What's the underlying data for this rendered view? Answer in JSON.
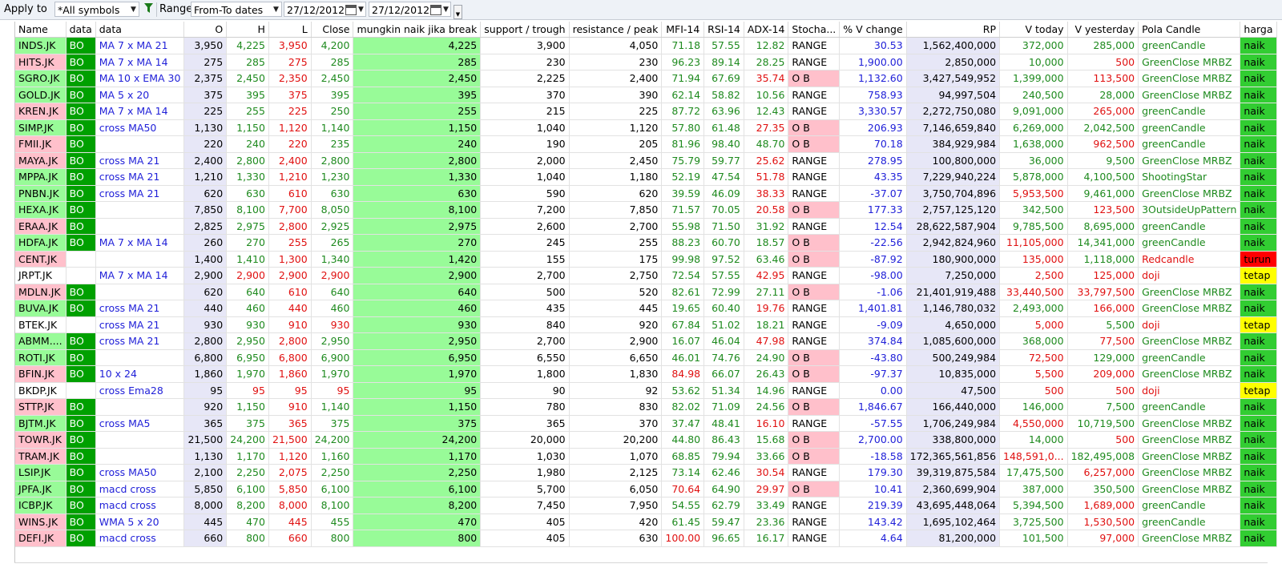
{
  "toolbar": {
    "apply_label": "Apply to",
    "apply_value": "*All symbols",
    "range_label": "Range",
    "range_value": "From-To dates",
    "date_from": "27/12/2012",
    "date_to": "27/12/2012"
  },
  "columns": [
    "Name",
    "data",
    "data",
    "O",
    "H",
    "L",
    "Close",
    "mungkin naik jika break",
    "support / trough",
    "resistance / peak",
    "MFI-14",
    "RSI-14",
    "ADX-14",
    "Stocha...",
    "% V change",
    "RP",
    "V today",
    "V yesterday",
    "Pola Candle",
    "harga"
  ],
  "colors": {
    "name_pink": "#ffc0cb",
    "name_green": "#98fb98",
    "bo_green": "#00a000",
    "naik_green": "#32cd32",
    "turun_red": "#ff0000",
    "tetap_yellow": "#ffff00",
    "ob_pink": "#ffc0cb",
    "lavender": "#e7e7f7",
    "text_blue": "#1f1fd8",
    "text_green": "#1e8a1e",
    "text_red": "#e01010"
  },
  "rows": [
    {
      "name": "INDS.JK",
      "nc": "g",
      "bo": "BO",
      "d2": "MA 7 x MA 21",
      "o": "3,950",
      "h": "4,225",
      "l": "3,950",
      "close": "4,200",
      "mn": "4,225",
      "sup": "3,900",
      "res": "4,050",
      "mfi": "71.18",
      "mfic": "g",
      "rsi": "57.55",
      "adx": "12.82",
      "adxc": "g",
      "sto": "RANGE",
      "vch": "30.53",
      "rp": "1,562,400,000",
      "vt": "372,000",
      "vtc": "g",
      "vy": "285,000",
      "vyc": "g",
      "pola": "greenCandle",
      "pc": "g",
      "harga": "naik"
    },
    {
      "name": "HITS.JK",
      "nc": "p",
      "bo": "BO",
      "d2": "MA 7 x MA 14",
      "o": "275",
      "h": "285",
      "l": "275",
      "close": "285",
      "mn": "285",
      "sup": "230",
      "res": "230",
      "mfi": "96.23",
      "mfic": "g",
      "rsi": "89.14",
      "adx": "28.25",
      "adxc": "g",
      "sto": "RANGE",
      "vch": "1,900.00",
      "rp": "2,850,000",
      "vt": "10,000",
      "vtc": "g",
      "vy": "500",
      "vyc": "r",
      "pola": "GreenClose MRBZ",
      "pc": "g",
      "harga": "naik"
    },
    {
      "name": "SGRO.JK",
      "nc": "g",
      "bo": "BO",
      "d2": "MA 10 x EMA 30",
      "o": "2,375",
      "h": "2,450",
      "l": "2,350",
      "close": "2,450",
      "mn": "2,450",
      "sup": "2,225",
      "res": "2,400",
      "mfi": "71.94",
      "mfic": "g",
      "rsi": "67.69",
      "adx": "35.74",
      "adxc": "r",
      "sto": "O B",
      "vch": "1,132.60",
      "rp": "3,427,549,952",
      "vt": "1,399,000",
      "vtc": "g",
      "vy": "113,500",
      "vyc": "r",
      "pola": "GreenClose MRBZ",
      "pc": "g",
      "harga": "naik"
    },
    {
      "name": "GOLD.JK",
      "nc": "g",
      "bo": "BO",
      "d2": "MA 5 x 20",
      "o": "375",
      "h": "395",
      "l": "375",
      "close": "395",
      "mn": "395",
      "sup": "370",
      "res": "390",
      "mfi": "62.14",
      "mfic": "g",
      "rsi": "58.82",
      "adx": "10.56",
      "adxc": "g",
      "sto": "RANGE",
      "vch": "758.93",
      "rp": "94,997,504",
      "vt": "240,500",
      "vtc": "g",
      "vy": "28,000",
      "vyc": "g",
      "pola": "GreenClose MRBZ",
      "pc": "g",
      "harga": "naik"
    },
    {
      "name": "KREN.JK",
      "nc": "p",
      "bo": "BO",
      "d2": "MA 7 x MA 14",
      "o": "225",
      "h": "255",
      "l": "225",
      "close": "250",
      "mn": "255",
      "sup": "215",
      "res": "225",
      "mfi": "87.72",
      "mfic": "g",
      "rsi": "63.96",
      "adx": "12.43",
      "adxc": "g",
      "sto": "RANGE",
      "vch": "3,330.57",
      "rp": "2,272,750,080",
      "vt": "9,091,000",
      "vtc": "g",
      "vy": "265,000",
      "vyc": "r",
      "pola": "greenCandle",
      "pc": "g",
      "harga": "naik"
    },
    {
      "name": "SIMP.JK",
      "nc": "g",
      "bo": "BO",
      "d2": "cross MA50",
      "o": "1,130",
      "h": "1,150",
      "l": "1,120",
      "close": "1,140",
      "mn": "1,150",
      "sup": "1,040",
      "res": "1,120",
      "mfi": "57.80",
      "mfic": "g",
      "rsi": "61.48",
      "adx": "27.35",
      "adxc": "r",
      "sto": "O B",
      "vch": "206.93",
      "rp": "7,146,659,840",
      "vt": "6,269,000",
      "vtc": "g",
      "vy": "2,042,500",
      "vyc": "g",
      "pola": "greenCandle",
      "pc": "g",
      "harga": "naik"
    },
    {
      "name": "FMII.JK",
      "nc": "p",
      "bo": "BO",
      "d2": "",
      "o": "220",
      "h": "240",
      "l": "220",
      "close": "235",
      "mn": "240",
      "sup": "190",
      "res": "205",
      "mfi": "81.96",
      "mfic": "g",
      "rsi": "98.40",
      "adx": "48.70",
      "adxc": "g",
      "sto": "O B",
      "vch": "70.18",
      "rp": "384,929,984",
      "vt": "1,638,000",
      "vtc": "g",
      "vy": "962,500",
      "vyc": "r",
      "pola": "greenCandle",
      "pc": "g",
      "harga": "naik"
    },
    {
      "name": "MAYA.JK",
      "nc": "p",
      "bo": "BO",
      "d2": "cross MA 21",
      "o": "2,400",
      "h": "2,800",
      "l": "2,400",
      "close": "2,800",
      "mn": "2,800",
      "sup": "2,000",
      "res": "2,450",
      "mfi": "75.79",
      "mfic": "g",
      "rsi": "59.77",
      "adx": "25.62",
      "adxc": "r",
      "sto": "RANGE",
      "vch": "278.95",
      "rp": "100,800,000",
      "vt": "36,000",
      "vtc": "g",
      "vy": "9,500",
      "vyc": "g",
      "pola": "GreenClose MRBZ",
      "pc": "g",
      "harga": "naik"
    },
    {
      "name": "MPPA.JK",
      "nc": "g",
      "bo": "BO",
      "d2": "cross MA 21",
      "o": "1,210",
      "h": "1,330",
      "l": "1,210",
      "close": "1,230",
      "mn": "1,330",
      "sup": "1,040",
      "res": "1,180",
      "mfi": "52.19",
      "mfic": "g",
      "rsi": "47.54",
      "adx": "51.78",
      "adxc": "r",
      "sto": "RANGE",
      "vch": "43.35",
      "rp": "7,229,940,224",
      "vt": "5,878,000",
      "vtc": "g",
      "vy": "4,100,500",
      "vyc": "g",
      "pola": "ShootingStar",
      "pc": "g",
      "harga": "naik"
    },
    {
      "name": "PNBN.JK",
      "nc": "g",
      "bo": "BO",
      "d2": "cross MA 21",
      "o": "620",
      "h": "630",
      "l": "610",
      "close": "630",
      "mn": "630",
      "sup": "590",
      "res": "620",
      "mfi": "39.59",
      "mfic": "g",
      "rsi": "46.09",
      "adx": "38.33",
      "adxc": "r",
      "sto": "RANGE",
      "vch": "-37.07",
      "rp": "3,750,704,896",
      "vt": "5,953,500",
      "vtc": "r",
      "vy": "9,461,000",
      "vyc": "g",
      "pola": "GreenClose MRBZ",
      "pc": "g",
      "harga": "naik"
    },
    {
      "name": "HEXA.JK",
      "nc": "g",
      "bo": "BO",
      "d2": "",
      "o": "7,850",
      "h": "8,100",
      "l": "7,700",
      "close": "8,050",
      "mn": "8,100",
      "sup": "7,200",
      "res": "7,850",
      "mfi": "71.57",
      "mfic": "g",
      "rsi": "70.05",
      "adx": "20.58",
      "adxc": "r",
      "sto": "O B",
      "vch": "177.33",
      "rp": "2,757,125,120",
      "vt": "342,500",
      "vtc": "g",
      "vy": "123,500",
      "vyc": "r",
      "pola": "3OutsideUpPattern",
      "pc": "g",
      "harga": "naik"
    },
    {
      "name": "ERAA.JK",
      "nc": "p",
      "bo": "BO",
      "d2": "",
      "o": "2,825",
      "h": "2,975",
      "l": "2,800",
      "close": "2,925",
      "mn": "2,975",
      "sup": "2,600",
      "res": "2,700",
      "mfi": "55.98",
      "mfic": "g",
      "rsi": "71.50",
      "adx": "31.92",
      "adxc": "g",
      "sto": "RANGE",
      "vch": "12.54",
      "rp": "28,622,587,904",
      "vt": "9,785,500",
      "vtc": "g",
      "vy": "8,695,000",
      "vyc": "g",
      "pola": "greenCandle",
      "pc": "g",
      "harga": "naik"
    },
    {
      "name": "HDFA.JK",
      "nc": "g",
      "bo": "BO",
      "d2": "MA 7 x MA 14",
      "o": "260",
      "h": "270",
      "l": "255",
      "close": "265",
      "mn": "270",
      "sup": "245",
      "res": "255",
      "mfi": "88.23",
      "mfic": "g",
      "rsi": "60.70",
      "adx": "18.57",
      "adxc": "g",
      "sto": "O B",
      "vch": "-22.56",
      "rp": "2,942,824,960",
      "vt": "11,105,000",
      "vtc": "r",
      "vy": "14,341,000",
      "vyc": "g",
      "pola": "greenCandle",
      "pc": "g",
      "harga": "naik"
    },
    {
      "name": "CENT.JK",
      "nc": "p",
      "bo": "",
      "d2": "",
      "o": "1,400",
      "h": "1,410",
      "l": "1,300",
      "close": "1,340",
      "mn": "1,420",
      "sup": "155",
      "res": "175",
      "mfi": "99.98",
      "mfic": "g",
      "rsi": "97.52",
      "adx": "63.46",
      "adxc": "g",
      "sto": "O B",
      "vch": "-87.92",
      "rp": "180,900,000",
      "vt": "135,000",
      "vtc": "r",
      "vy": "1,118,000",
      "vyc": "g",
      "pola": "Redcandle",
      "pc": "r",
      "harga": "turun"
    },
    {
      "name": "JRPT.JK",
      "nc": "w",
      "bo": "",
      "d2": "MA 7 x MA 14",
      "o": "2,900",
      "h": "2,900",
      "l": "2,900",
      "close": "2,900",
      "mn": "2,900",
      "sup": "2,700",
      "res": "2,750",
      "mfi": "72.54",
      "mfic": "g",
      "rsi": "57.55",
      "adx": "42.95",
      "adxc": "r",
      "sto": "RANGE",
      "vch": "-98.00",
      "rp": "7,250,000",
      "vt": "2,500",
      "vtc": "r",
      "vy": "125,000",
      "vyc": "r",
      "pola": "doji",
      "pc": "r",
      "harga": "tetap"
    },
    {
      "name": "MDLN.JK",
      "nc": "p",
      "bo": "BO",
      "d2": "",
      "o": "620",
      "h": "640",
      "l": "610",
      "close": "640",
      "mn": "640",
      "sup": "500",
      "res": "520",
      "mfi": "82.61",
      "mfic": "g",
      "rsi": "72.99",
      "adx": "27.11",
      "adxc": "g",
      "sto": "O B",
      "vch": "-1.06",
      "rp": "21,401,919,488",
      "vt": "33,440,500",
      "vtc": "r",
      "vy": "33,797,500",
      "vyc": "r",
      "pola": "GreenClose MRBZ",
      "pc": "g",
      "harga": "naik"
    },
    {
      "name": "BUVA.JK",
      "nc": "g",
      "bo": "BO",
      "d2": "cross MA 21",
      "o": "440",
      "h": "460",
      "l": "440",
      "close": "460",
      "mn": "460",
      "sup": "435",
      "res": "445",
      "mfi": "19.65",
      "mfic": "g",
      "rsi": "60.40",
      "adx": "19.76",
      "adxc": "r",
      "sto": "RANGE",
      "vch": "1,401.81",
      "rp": "1,146,780,032",
      "vt": "2,493,000",
      "vtc": "g",
      "vy": "166,000",
      "vyc": "r",
      "pola": "GreenClose MRBZ",
      "pc": "g",
      "harga": "naik"
    },
    {
      "name": "BTEK.JK",
      "nc": "w",
      "bo": "",
      "d2": "cross MA 21",
      "o": "930",
      "h": "930",
      "l": "910",
      "close": "930",
      "mn": "930",
      "sup": "840",
      "res": "920",
      "mfi": "67.84",
      "mfic": "g",
      "rsi": "51.02",
      "adx": "18.21",
      "adxc": "g",
      "sto": "RANGE",
      "vch": "-9.09",
      "rp": "4,650,000",
      "vt": "5,000",
      "vtc": "r",
      "vy": "5,500",
      "vyc": "g",
      "pola": "doji",
      "pc": "r",
      "harga": "tetap"
    },
    {
      "name": "ABMM....",
      "nc": "g",
      "bo": "BO",
      "d2": "cross MA 21",
      "o": "2,800",
      "h": "2,950",
      "l": "2,800",
      "close": "2,950",
      "mn": "2,950",
      "sup": "2,700",
      "res": "2,900",
      "mfi": "16.07",
      "mfic": "g",
      "rsi": "46.04",
      "adx": "47.98",
      "adxc": "r",
      "sto": "RANGE",
      "vch": "374.84",
      "rp": "1,085,600,000",
      "vt": "368,000",
      "vtc": "g",
      "vy": "77,500",
      "vyc": "r",
      "pola": "GreenClose MRBZ",
      "pc": "g",
      "harga": "naik"
    },
    {
      "name": "ROTI.JK",
      "nc": "g",
      "bo": "BO",
      "d2": "",
      "o": "6,800",
      "h": "6,950",
      "l": "6,800",
      "close": "6,900",
      "mn": "6,950",
      "sup": "6,550",
      "res": "6,650",
      "mfi": "46.01",
      "mfic": "g",
      "rsi": "74.76",
      "adx": "24.90",
      "adxc": "g",
      "sto": "O B",
      "vch": "-43.80",
      "rp": "500,249,984",
      "vt": "72,500",
      "vtc": "r",
      "vy": "129,000",
      "vyc": "g",
      "pola": "greenCandle",
      "pc": "g",
      "harga": "naik"
    },
    {
      "name": "BFIN.JK",
      "nc": "p",
      "bo": "BO",
      "d2": "10 x 24",
      "o": "1,860",
      "h": "1,970",
      "l": "1,860",
      "close": "1,970",
      "mn": "1,970",
      "sup": "1,800",
      "res": "1,830",
      "mfi": "84.98",
      "mfic": "r",
      "rsi": "66.07",
      "adx": "26.43",
      "adxc": "g",
      "sto": "O B",
      "vch": "-97.37",
      "rp": "10,835,000",
      "vt": "5,500",
      "vtc": "r",
      "vy": "209,000",
      "vyc": "r",
      "pola": "GreenClose MRBZ",
      "pc": "g",
      "harga": "naik"
    },
    {
      "name": "BKDP.JK",
      "nc": "w",
      "bo": "",
      "d2": "cross Ema28",
      "o": "95",
      "h": "95",
      "l": "95",
      "close": "95",
      "mn": "95",
      "sup": "90",
      "res": "92",
      "mfi": "53.62",
      "mfic": "g",
      "rsi": "51.34",
      "adx": "14.96",
      "adxc": "g",
      "sto": "RANGE",
      "vch": "0.00",
      "rp": "47,500",
      "vt": "500",
      "vtc": "r",
      "vy": "500",
      "vyc": "r",
      "pola": "doji",
      "pc": "r",
      "harga": "tetap"
    },
    {
      "name": "STTP.JK",
      "nc": "p",
      "bo": "BO",
      "d2": "",
      "o": "920",
      "h": "1,150",
      "l": "910",
      "close": "1,140",
      "mn": "1,150",
      "sup": "780",
      "res": "830",
      "mfi": "82.02",
      "mfic": "g",
      "rsi": "71.09",
      "adx": "24.56",
      "adxc": "g",
      "sto": "O B",
      "vch": "1,846.67",
      "rp": "166,440,000",
      "vt": "146,000",
      "vtc": "g",
      "vy": "7,500",
      "vyc": "g",
      "pola": "greenCandle",
      "pc": "g",
      "harga": "naik"
    },
    {
      "name": "BJTM.JK",
      "nc": "g",
      "bo": "BO",
      "d2": "cross MA5",
      "o": "365",
      "h": "375",
      "l": "365",
      "close": "375",
      "mn": "375",
      "sup": "365",
      "res": "370",
      "mfi": "37.47",
      "mfic": "g",
      "rsi": "48.41",
      "adx": "16.10",
      "adxc": "r",
      "sto": "RANGE",
      "vch": "-57.55",
      "rp": "1,706,249,984",
      "vt": "4,550,000",
      "vtc": "r",
      "vy": "10,719,500",
      "vyc": "g",
      "pola": "GreenClose MRBZ",
      "pc": "g",
      "harga": "naik"
    },
    {
      "name": "TOWR.JK",
      "nc": "p",
      "bo": "BO",
      "d2": "",
      "o": "21,500",
      "h": "24,200",
      "l": "21,500",
      "close": "24,200",
      "mn": "24,200",
      "sup": "20,000",
      "res": "20,200",
      "mfi": "44.80",
      "mfic": "g",
      "rsi": "86.43",
      "adx": "15.68",
      "adxc": "g",
      "sto": "O B",
      "vch": "2,700.00",
      "rp": "338,800,000",
      "vt": "14,000",
      "vtc": "g",
      "vy": "500",
      "vyc": "r",
      "pola": "GreenClose MRBZ",
      "pc": "g",
      "harga": "naik"
    },
    {
      "name": "TRAM.JK",
      "nc": "p",
      "bo": "BO",
      "d2": "",
      "o": "1,130",
      "h": "1,170",
      "l": "1,120",
      "close": "1,160",
      "mn": "1,170",
      "sup": "1,030",
      "res": "1,070",
      "mfi": "68.85",
      "mfic": "g",
      "rsi": "79.94",
      "adx": "33.66",
      "adxc": "g",
      "sto": "O B",
      "vch": "-18.58",
      "rp": "172,365,561,856",
      "vt": "148,591,0...",
      "vtc": "r",
      "vy": "182,495,008",
      "vyc": "g",
      "pola": "GreenClose MRBZ",
      "pc": "g",
      "harga": "naik"
    },
    {
      "name": "LSIP.JK",
      "nc": "g",
      "bo": "BO",
      "d2": "cross MA50",
      "o": "2,100",
      "h": "2,250",
      "l": "2,075",
      "close": "2,250",
      "mn": "2,250",
      "sup": "1,980",
      "res": "2,125",
      "mfi": "73.14",
      "mfic": "g",
      "rsi": "62.46",
      "adx": "30.54",
      "adxc": "r",
      "sto": "RANGE",
      "vch": "179.30",
      "rp": "39,319,875,584",
      "vt": "17,475,500",
      "vtc": "g",
      "vy": "6,257,000",
      "vyc": "r",
      "pola": "GreenClose MRBZ",
      "pc": "g",
      "harga": "naik"
    },
    {
      "name": "JPFA.JK",
      "nc": "g",
      "bo": "BO",
      "d2": "macd cross",
      "o": "5,850",
      "h": "6,100",
      "l": "5,850",
      "close": "6,100",
      "mn": "6,100",
      "sup": "5,700",
      "res": "6,050",
      "mfi": "70.64",
      "mfic": "r",
      "rsi": "64.90",
      "adx": "29.97",
      "adxc": "r",
      "sto": "O B",
      "vch": "10.41",
      "rp": "2,360,699,904",
      "vt": "387,000",
      "vtc": "g",
      "vy": "350,500",
      "vyc": "g",
      "pola": "GreenClose MRBZ",
      "pc": "g",
      "harga": "naik"
    },
    {
      "name": "ICBP.JK",
      "nc": "g",
      "bo": "BO",
      "d2": "macd cross",
      "o": "8,000",
      "h": "8,200",
      "l": "8,000",
      "close": "8,100",
      "mn": "8,200",
      "sup": "7,450",
      "res": "7,950",
      "mfi": "54.55",
      "mfic": "g",
      "rsi": "62.79",
      "adx": "33.49",
      "adxc": "g",
      "sto": "RANGE",
      "vch": "219.39",
      "rp": "43,695,448,064",
      "vt": "5,394,500",
      "vtc": "g",
      "vy": "1,689,000",
      "vyc": "r",
      "pola": "greenCandle",
      "pc": "g",
      "harga": "naik"
    },
    {
      "name": "WINS.JK",
      "nc": "p",
      "bo": "BO",
      "d2": "WMA 5 x 20",
      "o": "445",
      "h": "470",
      "l": "445",
      "close": "455",
      "mn": "470",
      "sup": "405",
      "res": "420",
      "mfi": "61.45",
      "mfic": "g",
      "rsi": "59.47",
      "adx": "23.36",
      "adxc": "g",
      "sto": "RANGE",
      "vch": "143.42",
      "rp": "1,695,102,464",
      "vt": "3,725,500",
      "vtc": "g",
      "vy": "1,530,500",
      "vyc": "r",
      "pola": "greenCandle",
      "pc": "g",
      "harga": "naik"
    },
    {
      "name": "DEFI.JK",
      "nc": "p",
      "bo": "BO",
      "d2": "macd cross",
      "o": "660",
      "h": "800",
      "l": "660",
      "close": "800",
      "mn": "800",
      "sup": "405",
      "res": "630",
      "mfi": "100.00",
      "mfic": "r",
      "rsi": "96.65",
      "adx": "16.17",
      "adxc": "g",
      "sto": "RANGE",
      "vch": "4.64",
      "rp": "81,200,000",
      "vt": "101,500",
      "vtc": "g",
      "vy": "97,000",
      "vyc": "r",
      "pola": "GreenClose MRBZ",
      "pc": "g",
      "harga": "naik"
    }
  ]
}
